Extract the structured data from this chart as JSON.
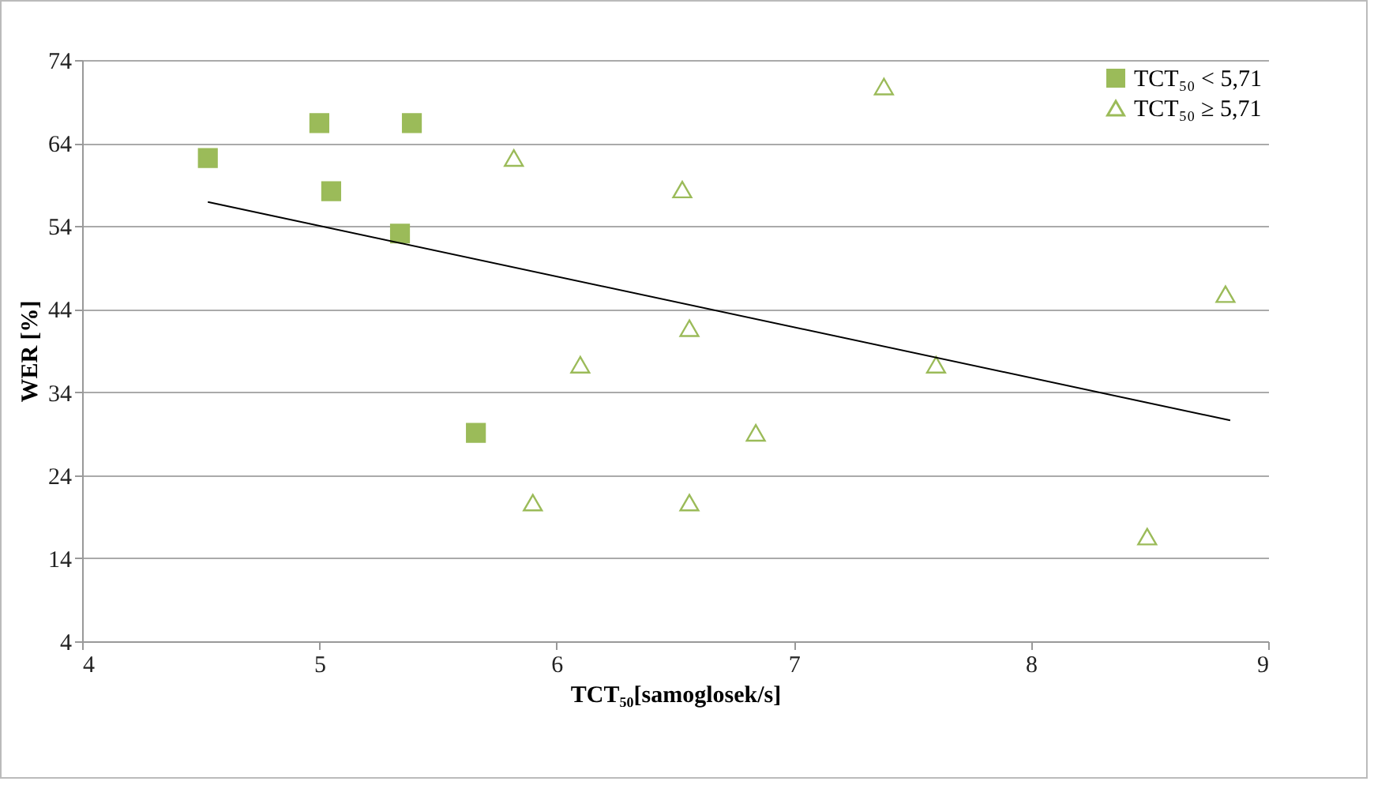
{
  "chart_data": {
    "type": "scatter",
    "xlabel": "TCT₅₀[samoglosek/s]",
    "ylabel": "WER [%]",
    "xlim": [
      4,
      9
    ],
    "xticks": [
      4,
      5,
      6,
      7,
      8,
      9
    ],
    "ylim": [
      4,
      74
    ],
    "yticks": [
      4,
      14,
      24,
      34,
      44,
      54,
      64,
      74
    ],
    "grid": "y",
    "legend": "top right",
    "series": [
      {
        "name": "TCT₅₀ < 5,71",
        "color": "#9bbb59",
        "marker": "square",
        "x": [
          4.53,
          5.0,
          5.39,
          5.05,
          5.34,
          5.66
        ],
        "values": [
          62.2,
          66.4,
          66.4,
          58.2,
          53.1,
          29.1
        ]
      },
      {
        "name": "TCT₅₀ ≥ 5,71",
        "color": "#9bbb59",
        "marker": "triangle",
        "x": [
          7.38,
          5.82,
          6.53,
          6.56,
          6.1,
          7.6,
          6.84,
          5.9,
          6.56,
          8.82,
          8.49
        ],
        "values": [
          70.8,
          62.2,
          58.4,
          41.7,
          37.3,
          37.3,
          29.1,
          20.7,
          20.7,
          45.8,
          16.6
        ]
      },
      {
        "type": "line",
        "color": "#000000",
        "x": [
          4.53,
          8.84
        ],
        "values": [
          56.9,
          30.6
        ]
      }
    ]
  }
}
